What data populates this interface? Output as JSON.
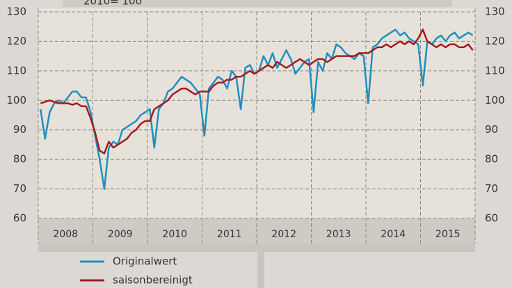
{
  "chart_data": {
    "type": "line",
    "note": "2010= 100",
    "years": [
      "2008",
      "2009",
      "2010",
      "2011",
      "2012",
      "2013",
      "2014",
      "2015"
    ],
    "ylim": [
      60,
      130
    ],
    "yticks": [
      60,
      70,
      80,
      90,
      100,
      110,
      120,
      130
    ],
    "grid": true,
    "series": [
      {
        "name": "Originalwert",
        "color": "#1f8fc0",
        "values": [
          97,
          87,
          96,
          99,
          100,
          99,
          101,
          103,
          103,
          101,
          101,
          96,
          88,
          80,
          70,
          84,
          86,
          85,
          90,
          91,
          92,
          93,
          95,
          96,
          97,
          84,
          97,
          99,
          103,
          104,
          106,
          108,
          107,
          106,
          104,
          102,
          88,
          104,
          106,
          108,
          107,
          104,
          110,
          108,
          97,
          111,
          112,
          109,
          110,
          115,
          112,
          116,
          111,
          114,
          117,
          114,
          109,
          111,
          113,
          114,
          96,
          113,
          110,
          116,
          114,
          119,
          118,
          116,
          115,
          114,
          116,
          115,
          99,
          118,
          119,
          121,
          122,
          123,
          124,
          122,
          123,
          121,
          120,
          119,
          105,
          120,
          119,
          121,
          122,
          120,
          122,
          123,
          121,
          122,
          123,
          122
        ]
      },
      {
        "name": "saisonbereinigt",
        "color": "#a51b1f",
        "values": [
          99,
          99.5,
          100,
          99.5,
          99,
          99,
          99,
          98.5,
          99,
          98,
          98,
          94,
          89,
          83,
          82,
          86,
          84,
          85,
          86,
          87,
          89,
          90,
          92,
          93,
          93,
          97,
          98,
          99,
          100,
          102,
          103,
          104,
          104,
          103,
          102,
          103,
          103,
          103,
          105,
          106,
          106,
          107,
          107,
          108,
          108,
          109,
          110,
          109,
          110,
          111,
          112,
          111,
          113,
          112,
          111,
          112,
          113,
          114,
          113,
          112,
          113,
          114,
          114,
          113,
          114,
          115,
          115,
          115,
          115,
          115,
          116,
          116,
          116,
          117,
          118,
          118,
          119,
          118,
          119,
          120,
          119,
          120,
          119,
          121,
          124,
          120,
          119,
          118,
          119,
          118,
          119,
          119,
          118,
          118,
          119,
          117
        ]
      }
    ]
  }
}
